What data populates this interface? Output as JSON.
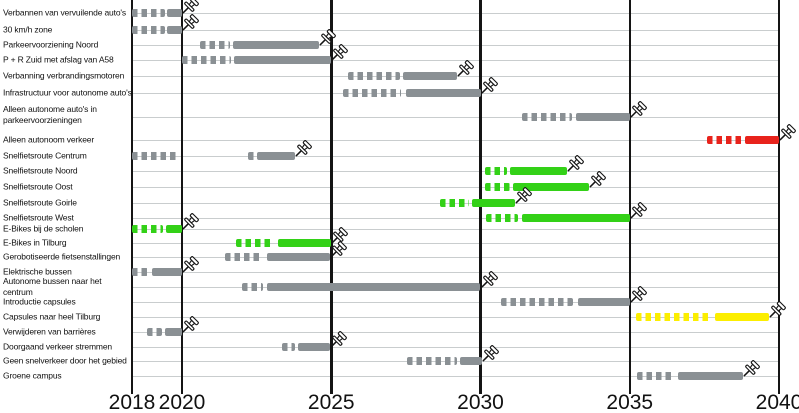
{
  "chart_data": {
    "type": "bar",
    "subtype": "gantt-roadmap",
    "xlabel": "",
    "ylabel": "",
    "xlim": [
      2018,
      2040
    ],
    "grid": "horizontal-per-row-and-vertical-year-lines",
    "axis_ticks": [
      2018,
      2020,
      2025,
      2030,
      2035,
      2040
    ],
    "colors": {
      "gray": "#8a9094",
      "green": "#33d117",
      "red": "#e8231c",
      "yellow": "#fcee00"
    },
    "legend": [],
    "rows": [
      {
        "label": "Verbannen van vervuilende auto's",
        "color": "gray",
        "segments": [
          {
            "style": "dashed",
            "from": 2018.0,
            "to": 2019.3
          },
          {
            "style": "solid",
            "from": 2019.4,
            "to": 2020.0
          }
        ],
        "pin": true
      },
      {
        "label": "30 km/h zone",
        "color": "gray",
        "segments": [
          {
            "style": "dashed",
            "from": 2018.0,
            "to": 2019.3
          },
          {
            "style": "solid",
            "from": 2019.4,
            "to": 2020.0
          }
        ],
        "pin": true
      },
      {
        "label": "Parkeervoorziening Noord",
        "color": "gray",
        "segments": [
          {
            "style": "dashed",
            "from": 2020.6,
            "to": 2021.6
          },
          {
            "style": "solid",
            "from": 2021.7,
            "to": 2024.6
          }
        ],
        "pin": true
      },
      {
        "label": "P + R Zuid met afslag van A58",
        "color": "gray",
        "segments": [
          {
            "style": "dashed",
            "from": 2020.0,
            "to": 2021.65
          },
          {
            "style": "solid",
            "from": 2021.75,
            "to": 2025.0
          }
        ],
        "pin": true
      },
      {
        "label": "Verbanning verbrandingsmotoren",
        "color": "gray",
        "segments": [
          {
            "style": "dashed",
            "from": 2025.55,
            "to": 2027.3
          },
          {
            "style": "solid",
            "from": 2027.4,
            "to": 2029.2
          }
        ],
        "pin": true
      },
      {
        "label": "Infrastructuur voor autonome auto's",
        "color": "gray",
        "segments": [
          {
            "style": "dashed",
            "from": 2025.4,
            "to": 2027.35
          },
          {
            "style": "solid",
            "from": 2027.5,
            "to": 2030.0
          }
        ],
        "pin": true
      },
      {
        "label": "Alleen autonome auto's in\nparkeervoorzieningen",
        "color": "gray",
        "segments": [
          {
            "style": "dashed",
            "from": 2031.4,
            "to": 2033.05
          },
          {
            "style": "solid",
            "from": 2033.2,
            "to": 2035.0
          }
        ],
        "pin": true
      },
      {
        "label": "Alleen autonoom verkeer",
        "color": "red",
        "segments": [
          {
            "style": "dashed",
            "from": 2037.6,
            "to": 2038.75
          },
          {
            "style": "solid",
            "from": 2038.85,
            "to": 2040.0
          }
        ],
        "pin": true
      },
      {
        "label": "Snelfietsroute Centrum",
        "color": "gray",
        "segments": [
          {
            "style": "dashed",
            "from": 2018.0,
            "to": 2019.8
          },
          {
            "style": "dashed",
            "from": 2022.2,
            "to": 2022.45
          },
          {
            "style": "solid",
            "from": 2022.5,
            "to": 2023.8
          }
        ],
        "pin": true
      },
      {
        "label": "Snelfietsroute Noord",
        "color": "green",
        "segments": [
          {
            "style": "dashed",
            "from": 2030.15,
            "to": 2030.9
          },
          {
            "style": "solid",
            "from": 2031.0,
            "to": 2032.9
          }
        ],
        "pin": true
      },
      {
        "label": "Snelfietsroute Oost",
        "color": "green",
        "segments": [
          {
            "style": "dashed",
            "from": 2030.15,
            "to": 2031.0
          },
          {
            "style": "solid",
            "from": 2031.1,
            "to": 2033.65
          }
        ],
        "pin": true
      },
      {
        "label": "Snelfietsroute Goirle",
        "color": "green",
        "segments": [
          {
            "style": "dashed",
            "from": 2028.65,
            "to": 2029.6
          },
          {
            "style": "solid",
            "from": 2029.7,
            "to": 2031.15
          }
        ],
        "pin": true
      },
      {
        "label": "Snelfietsroute West",
        "color": "green",
        "segments": [
          {
            "style": "dashed",
            "from": 2030.2,
            "to": 2031.25
          },
          {
            "style": "solid",
            "from": 2031.4,
            "to": 2035.0
          }
        ],
        "pin": true
      },
      {
        "label": "E-Bikes bij de scholen",
        "color": "green",
        "segments": [
          {
            "style": "dashed",
            "from": 2018.0,
            "to": 2019.25
          },
          {
            "style": "solid",
            "from": 2019.35,
            "to": 2020.0
          }
        ],
        "pin": true
      },
      {
        "label": "E-Bikes in Tilburg",
        "color": "green",
        "segments": [
          {
            "style": "dashed",
            "from": 2021.8,
            "to": 2023.0
          },
          {
            "style": "solid",
            "from": 2023.2,
            "to": 2025.0
          }
        ],
        "pin": true
      },
      {
        "label": "Gerobotiseerde fietsenstallingen",
        "color": "gray",
        "segments": [
          {
            "style": "dashed",
            "from": 2021.45,
            "to": 2022.7
          },
          {
            "style": "solid",
            "from": 2022.85,
            "to": 2024.95
          }
        ],
        "pin": true
      },
      {
        "label": "Elektrische bussen",
        "color": "gray",
        "segments": [
          {
            "style": "dashed",
            "from": 2018.0,
            "to": 2018.65
          },
          {
            "style": "solid",
            "from": 2018.8,
            "to": 2020.0
          }
        ],
        "pin": true
      },
      {
        "label": "Autonome bussen naar het centrum",
        "color": "gray",
        "segments": [
          {
            "style": "dashed",
            "from": 2022.0,
            "to": 2022.7
          },
          {
            "style": "solid",
            "from": 2022.85,
            "to": 2030.0
          }
        ],
        "pin": true
      },
      {
        "label": "Introductie capsules",
        "color": "gray",
        "segments": [
          {
            "style": "dashed",
            "from": 2030.7,
            "to": 2033.1
          },
          {
            "style": "solid",
            "from": 2033.25,
            "to": 2035.0
          }
        ],
        "pin": true
      },
      {
        "label": "Capsules naar heel Tilburg",
        "color": "yellow",
        "segments": [
          {
            "style": "dashed",
            "from": 2035.2,
            "to": 2037.75
          },
          {
            "style": "solid",
            "from": 2037.85,
            "to": 2039.65
          }
        ],
        "pin": true
      },
      {
        "label": "Verwijderen van barrières",
        "color": "gray",
        "segments": [
          {
            "style": "dashed",
            "from": 2018.6,
            "to": 2019.2
          },
          {
            "style": "solid",
            "from": 2019.3,
            "to": 2020.0
          }
        ],
        "pin": true
      },
      {
        "label": "Doorgaand verkeer stremmen",
        "color": "gray",
        "segments": [
          {
            "style": "dashed",
            "from": 2023.35,
            "to": 2023.8
          },
          {
            "style": "solid",
            "from": 2023.9,
            "to": 2024.95
          }
        ],
        "pin": true
      },
      {
        "label": "Geen snelverkeer door het gebied",
        "color": "gray",
        "segments": [
          {
            "style": "dashed",
            "from": 2027.55,
            "to": 2029.2
          },
          {
            "style": "solid",
            "from": 2029.3,
            "to": 2030.05
          }
        ],
        "pin": true
      },
      {
        "label": "Groene campus",
        "color": "gray",
        "segments": [
          {
            "style": "dashed",
            "from": 2035.25,
            "to": 2036.5
          },
          {
            "style": "solid",
            "from": 2036.6,
            "to": 2038.8
          }
        ],
        "pin": true
      }
    ]
  }
}
